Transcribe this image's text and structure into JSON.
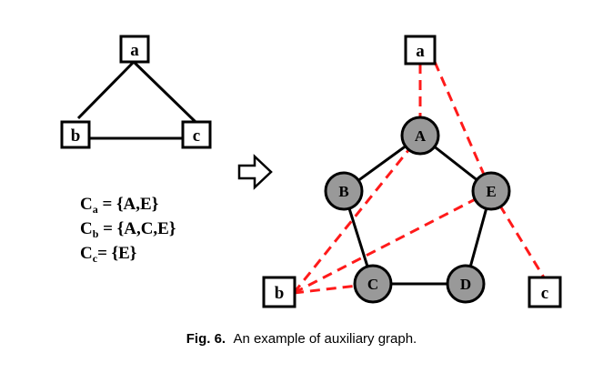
{
  "left_graph": {
    "nodes": [
      "a",
      "b",
      "c"
    ]
  },
  "sets": [
    {
      "var": "C",
      "sub": "a",
      "eq": " = ",
      "value": "{A,E}"
    },
    {
      "var": "C",
      "sub": "b",
      "eq": " = ",
      "value": "{A,C,E}"
    },
    {
      "var": "C",
      "sub": "c",
      "eq": "= ",
      "value": "{E}"
    }
  ],
  "right_graph": {
    "square_nodes": [
      "a",
      "b",
      "c"
    ],
    "circle_nodes": [
      "A",
      "B",
      "C",
      "D",
      "E"
    ]
  },
  "colors": {
    "circle_fill": "#999999",
    "dashed_edge": "#ff1a1a",
    "edge": "#000000"
  },
  "caption": {
    "label": "Fig. 6.",
    "text": "An example of auxiliary graph."
  }
}
